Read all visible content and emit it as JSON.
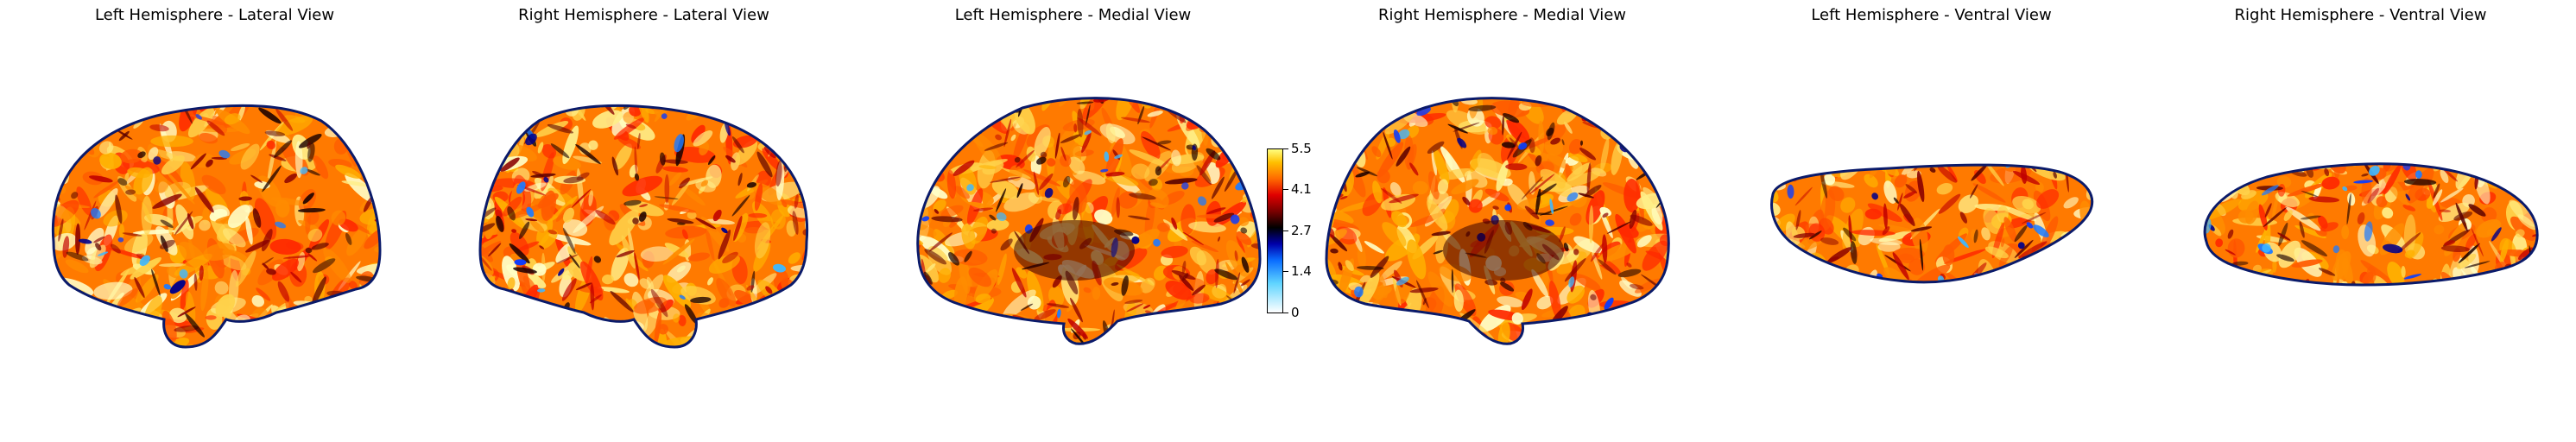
{
  "panels": [
    {
      "title": "Left Hemisphere - Lateral View",
      "view": "lateral",
      "hemisphere": "left"
    },
    {
      "title": "Right Hemisphere - Lateral View",
      "view": "lateral",
      "hemisphere": "right"
    },
    {
      "title": "Left Hemisphere - Medial View",
      "view": "medial",
      "hemisphere": "left"
    },
    {
      "title": "Right Hemisphere - Medial View",
      "view": "medial",
      "hemisphere": "right"
    },
    {
      "title": "Left Hemisphere - Ventral View",
      "view": "ventral",
      "hemisphere": "left"
    },
    {
      "title": "Right Hemisphere - Ventral View",
      "view": "ventral",
      "hemisphere": "right"
    }
  ],
  "colorbar": {
    "ticks": [
      "5.5",
      "4.1",
      "2.7",
      "1.4",
      "0"
    ],
    "colormap": [
      "#ffffff",
      "#5fd4ff",
      "#0a6cff",
      "#0000aa",
      "#000000",
      "#7a0000",
      "#e00000",
      "#ff6a00",
      "#ffc000",
      "#ffff80"
    ]
  }
}
